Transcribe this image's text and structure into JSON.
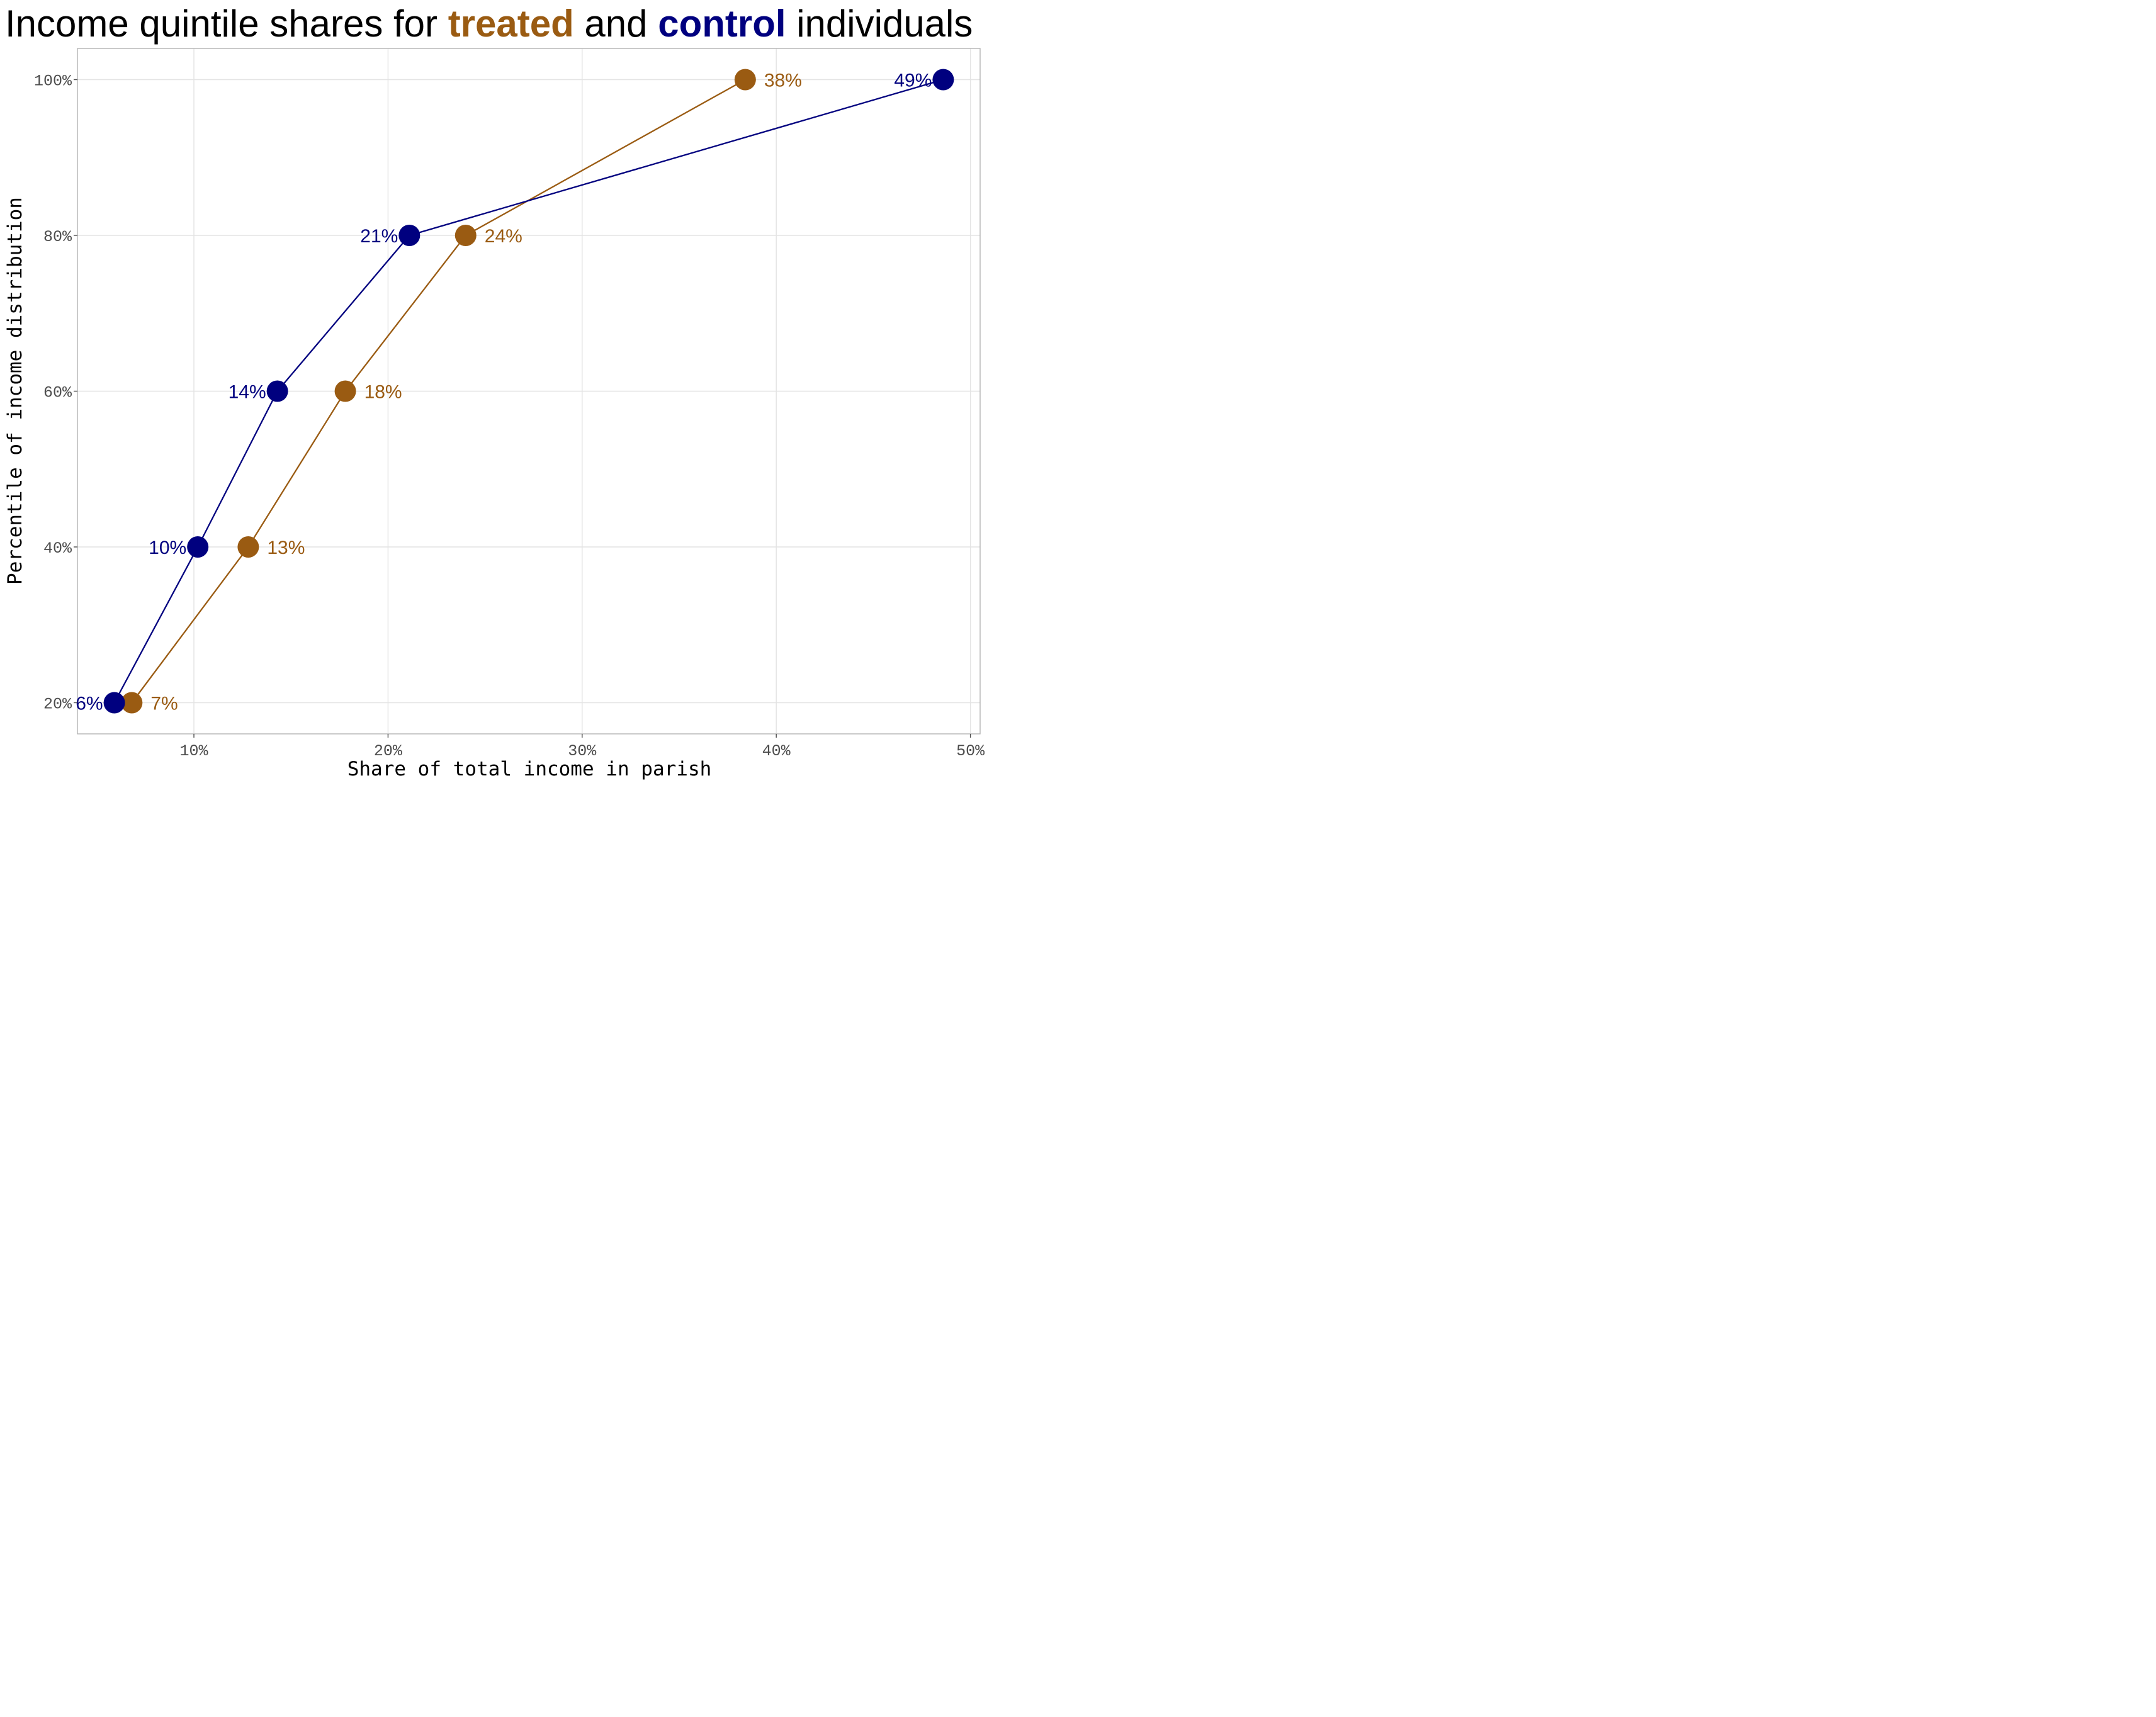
{
  "title": {
    "prefix": "Income quintile shares for ",
    "treated_word": "treated",
    "middle": " and ",
    "control_word": "control",
    "suffix": " individuals"
  },
  "colors": {
    "treated": "#9a5b12",
    "control": "#00007f",
    "grid": "#e3e3e3",
    "tick_text": "#4d4d4d"
  },
  "chart_data": {
    "type": "line",
    "title": "Income quintile shares for treated and control individuals",
    "xlabel": "Share of total income in parish",
    "ylabel": "Percentile of income distribution",
    "xlim": [
      0.04,
      0.505
    ],
    "ylim": [
      0.16,
      1.04
    ],
    "x_ticks": [
      0.1,
      0.2,
      0.3,
      0.4,
      0.5
    ],
    "x_tick_labels": [
      "10%",
      "20%",
      "30%",
      "40%",
      "50%"
    ],
    "y_ticks": [
      0.2,
      0.4,
      0.6,
      0.8,
      1.0
    ],
    "y_tick_labels": [
      "20%",
      "40%",
      "60%",
      "80%",
      "100%"
    ],
    "grid": true,
    "legend": "none (series colors named in title)",
    "series": [
      {
        "name": "treated",
        "color": "#9a5b12",
        "label_side": "right",
        "points": [
          {
            "x": 0.068,
            "y": 0.2,
            "label": "7%"
          },
          {
            "x": 0.128,
            "y": 0.4,
            "label": "13%"
          },
          {
            "x": 0.178,
            "y": 0.6,
            "label": "18%"
          },
          {
            "x": 0.24,
            "y": 0.8,
            "label": "24%"
          },
          {
            "x": 0.384,
            "y": 1.0,
            "label": "38%"
          }
        ]
      },
      {
        "name": "control",
        "color": "#00007f",
        "label_side": "left",
        "points": [
          {
            "x": 0.059,
            "y": 0.2,
            "label": "6%"
          },
          {
            "x": 0.102,
            "y": 0.4,
            "label": "10%"
          },
          {
            "x": 0.143,
            "y": 0.6,
            "label": "14%"
          },
          {
            "x": 0.211,
            "y": 0.8,
            "label": "21%"
          },
          {
            "x": 0.486,
            "y": 1.0,
            "label": "49%"
          }
        ]
      }
    ]
  }
}
